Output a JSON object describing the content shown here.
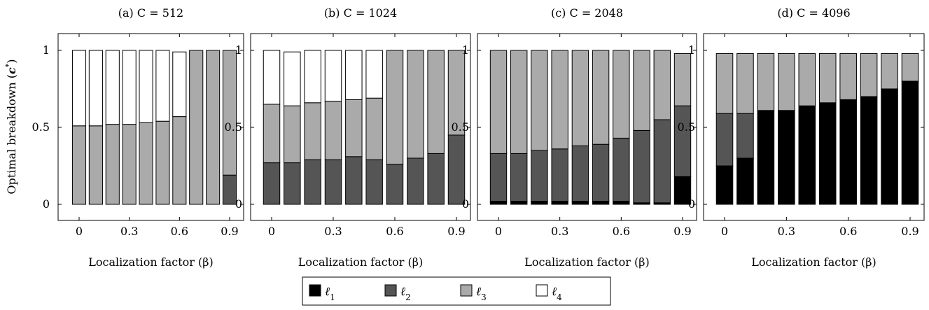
{
  "ylabel": "Optimal breakdown (c*)",
  "legend": [
    {
      "label": "ℓ1",
      "color": "#000000"
    },
    {
      "label": "ℓ2",
      "color": "#555555"
    },
    {
      "label": "ℓ3",
      "color": "#aaaaaa"
    },
    {
      "label": "ℓ4",
      "color": "#ffffff"
    }
  ],
  "chart_data": [
    {
      "type": "bar",
      "stacked": true,
      "title": "(a) C = 512",
      "xlabel": "Localization factor (β)",
      "ylabel": "Optimal breakdown (c*)",
      "x": [
        0,
        0.1,
        0.2,
        0.3,
        0.4,
        0.5,
        0.6,
        0.7,
        0.8,
        0.9
      ],
      "xticks": [
        "0",
        "0.3",
        "0.6",
        "0.9"
      ],
      "yticks": [
        "0",
        "0.5",
        "1"
      ],
      "ylim": [
        -0.1,
        1.1
      ],
      "series": [
        {
          "name": "ℓ1",
          "values": [
            0,
            0,
            0,
            0,
            0,
            0,
            0,
            0,
            0,
            0
          ]
        },
        {
          "name": "ℓ2",
          "values": [
            0,
            0,
            0,
            0,
            0,
            0,
            0,
            0,
            0,
            0.19
          ]
        },
        {
          "name": "ℓ3",
          "values": [
            0.51,
            0.51,
            0.52,
            0.52,
            0.53,
            0.54,
            0.57,
            1.0,
            1.0,
            0.81
          ]
        },
        {
          "name": "ℓ4",
          "values": [
            0.49,
            0.49,
            0.48,
            0.48,
            0.47,
            0.46,
            0.42,
            0,
            0,
            0
          ]
        }
      ]
    },
    {
      "type": "bar",
      "stacked": true,
      "title": "(b) C = 1024",
      "xlabel": "Localization factor (β)",
      "x": [
        0,
        0.1,
        0.2,
        0.3,
        0.4,
        0.5,
        0.6,
        0.7,
        0.8,
        0.9
      ],
      "xticks": [
        "0",
        "0.3",
        "0.6",
        "0.9"
      ],
      "yticks": [
        "0",
        "0.5",
        "1"
      ],
      "ylim": [
        -0.1,
        1.1
      ],
      "series": [
        {
          "name": "ℓ1",
          "values": [
            0,
            0,
            0,
            0,
            0,
            0,
            0,
            0,
            0,
            0
          ]
        },
        {
          "name": "ℓ2",
          "values": [
            0.27,
            0.27,
            0.29,
            0.29,
            0.31,
            0.29,
            0.26,
            0.3,
            0.33,
            0.45
          ]
        },
        {
          "name": "ℓ3",
          "values": [
            0.38,
            0.37,
            0.37,
            0.38,
            0.37,
            0.4,
            0.74,
            0.7,
            0.67,
            0.55
          ]
        },
        {
          "name": "ℓ4",
          "values": [
            0.35,
            0.35,
            0.34,
            0.33,
            0.32,
            0.31,
            0,
            0,
            0,
            0
          ]
        }
      ]
    },
    {
      "type": "bar",
      "stacked": true,
      "title": "(c) C = 2048",
      "xlabel": "Localization factor (β)",
      "x": [
        0,
        0.1,
        0.2,
        0.3,
        0.4,
        0.5,
        0.6,
        0.7,
        0.8,
        0.9
      ],
      "xticks": [
        "0",
        "0.3",
        "0.6",
        "0.9"
      ],
      "yticks": [
        "0",
        "0.5",
        "1"
      ],
      "ylim": [
        -0.1,
        1.1
      ],
      "series": [
        {
          "name": "ℓ1",
          "values": [
            0.02,
            0.02,
            0.02,
            0.02,
            0.02,
            0.02,
            0.02,
            0.01,
            0.01,
            0.18
          ]
        },
        {
          "name": "ℓ2",
          "values": [
            0.31,
            0.31,
            0.33,
            0.34,
            0.36,
            0.37,
            0.41,
            0.47,
            0.54,
            0.46
          ]
        },
        {
          "name": "ℓ3",
          "values": [
            0.67,
            0.67,
            0.65,
            0.64,
            0.62,
            0.61,
            0.57,
            0.52,
            0.45,
            0.34
          ]
        },
        {
          "name": "ℓ4",
          "values": [
            0,
            0,
            0,
            0,
            0,
            0,
            0,
            0,
            0,
            0
          ]
        }
      ]
    },
    {
      "type": "bar",
      "stacked": true,
      "title": "(d) C = 4096",
      "xlabel": "Localization factor (β)",
      "x": [
        0,
        0.1,
        0.2,
        0.3,
        0.4,
        0.5,
        0.6,
        0.7,
        0.8,
        0.9
      ],
      "xticks": [
        "0",
        "0.3",
        "0.6",
        "0.9"
      ],
      "yticks": [
        "0",
        "0.5",
        "1"
      ],
      "ylim": [
        -0.1,
        1.1
      ],
      "series": [
        {
          "name": "ℓ1",
          "values": [
            0.25,
            0.3,
            0.61,
            0.61,
            0.64,
            0.66,
            0.68,
            0.7,
            0.75,
            0.8
          ]
        },
        {
          "name": "ℓ2",
          "values": [
            0.34,
            0.29,
            0,
            0,
            0,
            0,
            0,
            0,
            0,
            0
          ]
        },
        {
          "name": "ℓ3",
          "values": [
            0.39,
            0.39,
            0.37,
            0.37,
            0.34,
            0.32,
            0.3,
            0.28,
            0.23,
            0.18
          ]
        },
        {
          "name": "ℓ4",
          "values": [
            0,
            0,
            0,
            0,
            0,
            0,
            0,
            0,
            0,
            0
          ]
        }
      ]
    }
  ]
}
